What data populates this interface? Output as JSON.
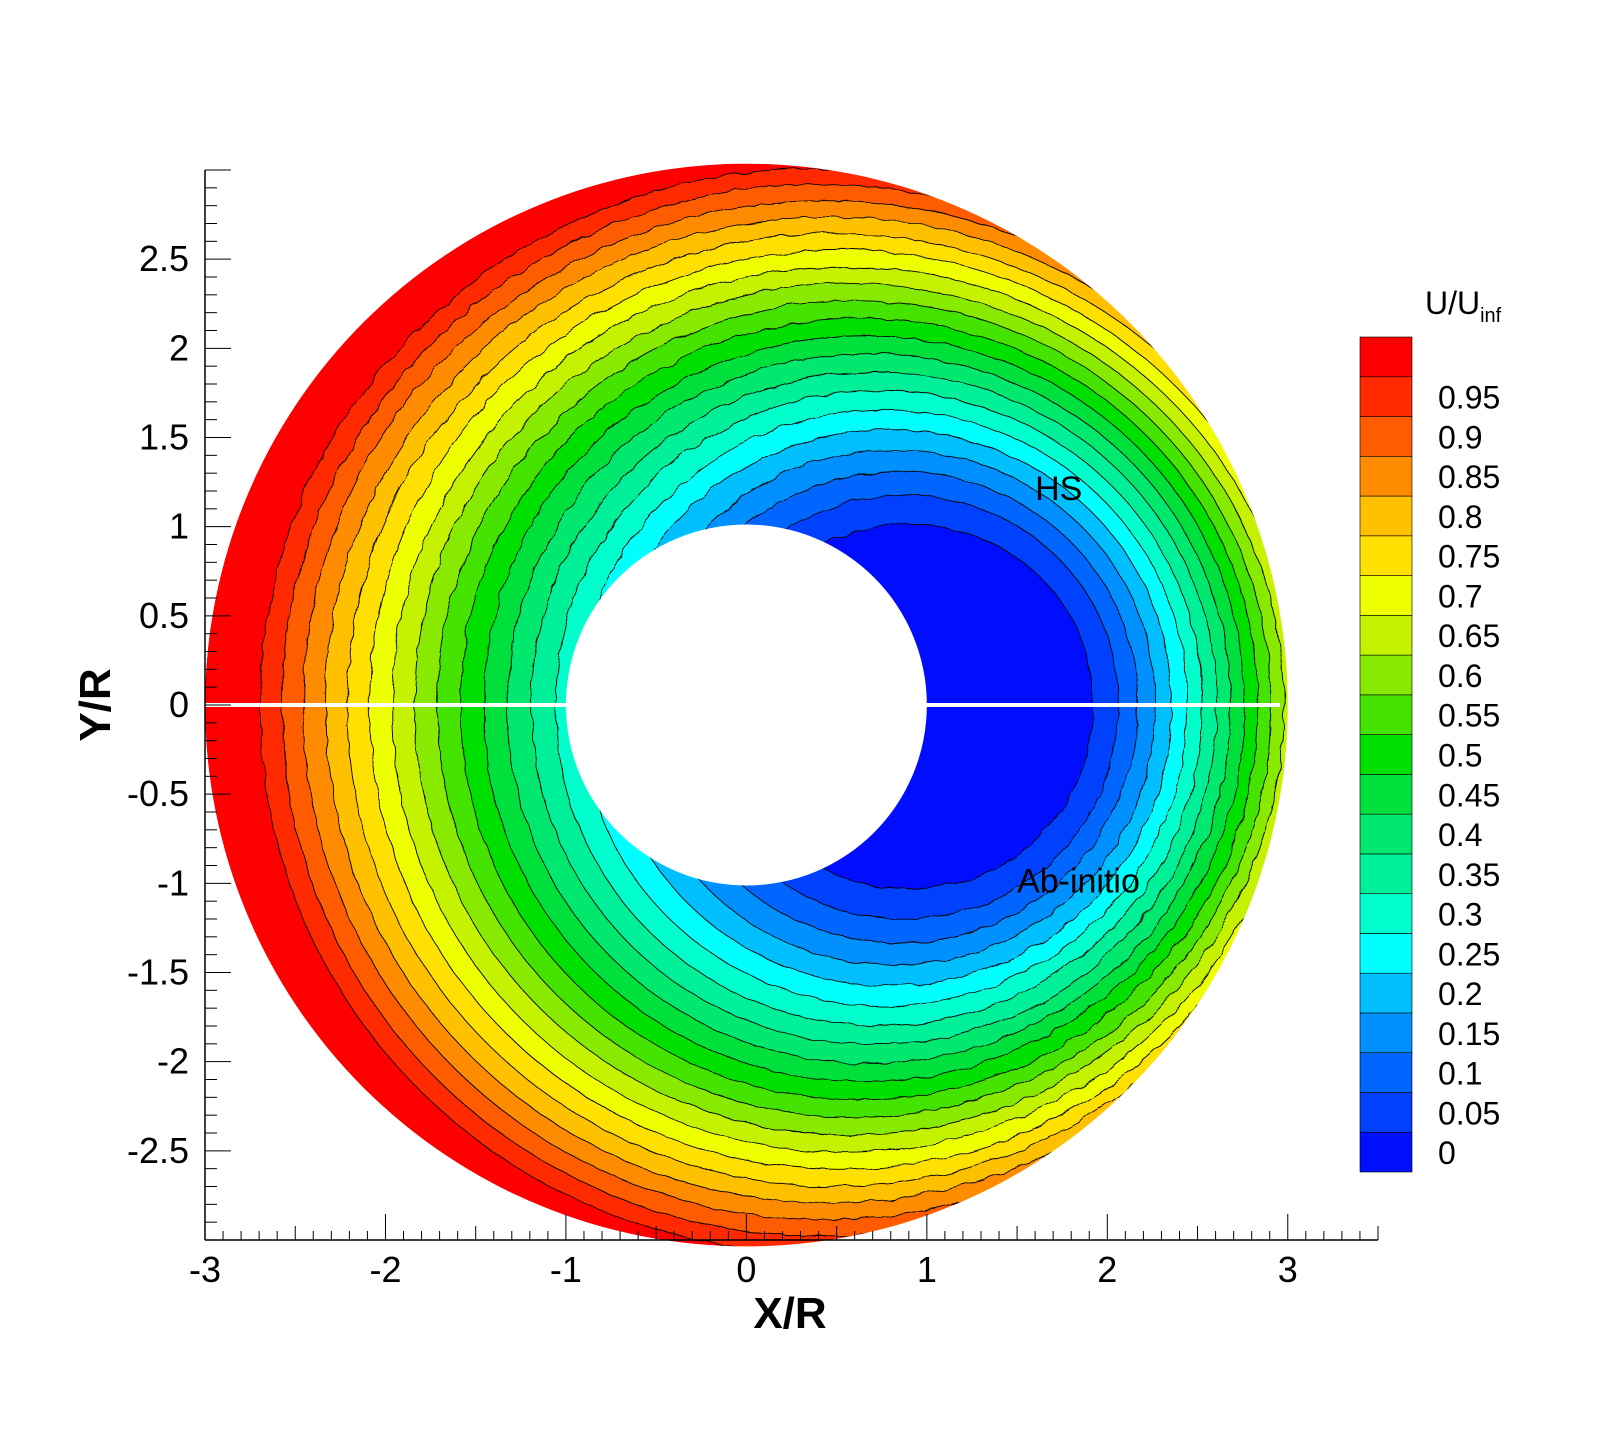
{
  "chart_data": {
    "type": "contour",
    "xlabel": "X/R",
    "ylabel": "Y/R",
    "xlim": [
      -3,
      3.5
    ],
    "ylim": [
      -3,
      3
    ],
    "x_ticks": [
      -3,
      -2,
      -1,
      0,
      1,
      2,
      3
    ],
    "y_ticks": [
      -2.5,
      -2,
      -1.5,
      -1,
      -0.5,
      0,
      0.5,
      1,
      1.5,
      2,
      2.5
    ],
    "x_tick_labels": [
      "-3",
      "-2",
      "-1",
      "0",
      "1",
      "2",
      "3"
    ],
    "y_tick_labels": [
      "-2.5",
      "-2",
      "-1.5",
      "-1",
      "-0.5",
      "0",
      "0.5",
      "1",
      "1.5",
      "2",
      "2.5"
    ],
    "domain": {
      "inner_radius": 1,
      "outer_radius": 3
    },
    "colorbar": {
      "title_main": "U/U",
      "title_sub": "inf",
      "levels": [
        0,
        0.05,
        0.1,
        0.15,
        0.2,
        0.25,
        0.3,
        0.35,
        0.4,
        0.45,
        0.5,
        0.55,
        0.6,
        0.65,
        0.7,
        0.75,
        0.8,
        0.85,
        0.9,
        0.95
      ],
      "labels": [
        "0",
        "0.05",
        "0.1",
        "0.15",
        "0.2",
        "0.25",
        "0.3",
        "0.35",
        "0.4",
        "0.45",
        "0.5",
        "0.55",
        "0.6",
        "0.65",
        "0.7",
        "0.75",
        "0.8",
        "0.85",
        "0.9",
        "0.95"
      ],
      "colors": [
        "#0010ff",
        "#0040ff",
        "#0066ff",
        "#0090ff",
        "#00bfff",
        "#00ffff",
        "#00ffcc",
        "#00f09a",
        "#00e86e",
        "#00e03c",
        "#00e000",
        "#44e400",
        "#88ea00",
        "#c4f200",
        "#eeff00",
        "#ffe000",
        "#ffc000",
        "#ff8c00",
        "#ff5c00",
        "#ff2a00",
        "#ff0000"
      ],
      "placement": "right"
    },
    "annotations": [
      {
        "text": "HS",
        "x": 1.6,
        "y": 1.15
      },
      {
        "text": "Ab-initio",
        "x": 1.5,
        "y": -1.05
      }
    ]
  }
}
